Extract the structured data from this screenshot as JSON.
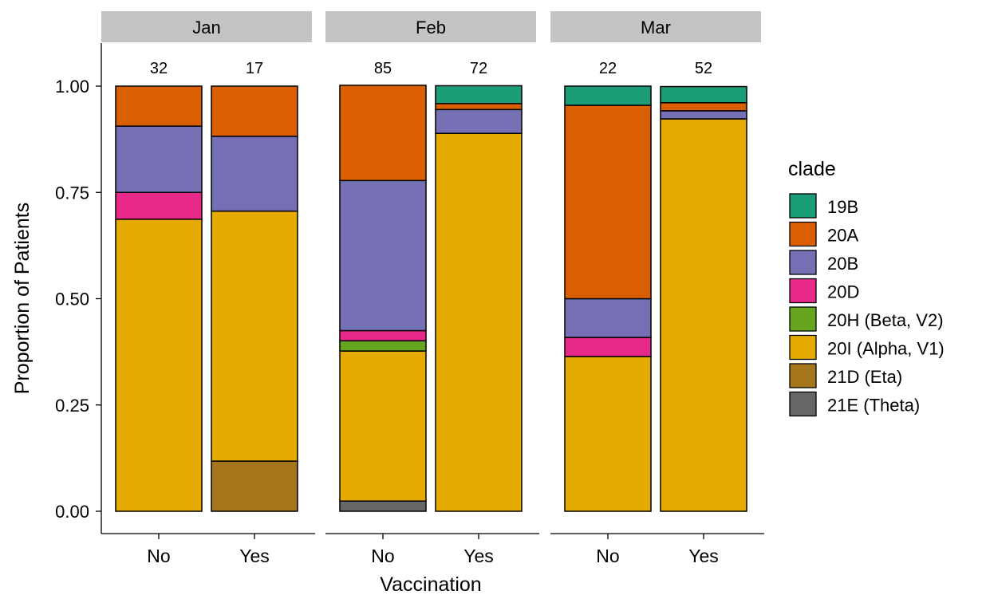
{
  "chart_data": {
    "type": "bar",
    "stacked": true,
    "faceted": true,
    "xlabel": "Vaccination",
    "ylabel": "Proportion of Patients",
    "ylim": [
      0,
      1
    ],
    "yticks": [
      "0.00",
      "0.25",
      "0.50",
      "0.75",
      "1.00"
    ],
    "categories": [
      "No",
      "Yes"
    ],
    "legend": {
      "title": "clade",
      "position": "right",
      "items": [
        {
          "label": "19B",
          "color": "#1b9e77"
        },
        {
          "label": "20A",
          "color": "#d95f02"
        },
        {
          "label": "20B",
          "color": "#7570b3"
        },
        {
          "label": "20D",
          "color": "#e7298a"
        },
        {
          "label": "20H (Beta, V2)",
          "color": "#66a61e"
        },
        {
          "label": "20I (Alpha, V1)",
          "color": "#e6ab02"
        },
        {
          "label": "21D (Eta)",
          "color": "#a6761d"
        },
        {
          "label": "21E (Theta)",
          "color": "#666666"
        }
      ]
    },
    "panels": [
      {
        "title": "Jan",
        "bars": [
          {
            "category": "No",
            "count": "32",
            "segments": {
              "19B": 0,
              "20A": 0.094,
              "20B": 0.156,
              "20D": 0.063,
              "20H (Beta, V2)": 0,
              "20I (Alpha, V1)": 0.687,
              "21D (Eta)": 0,
              "21E (Theta)": 0
            }
          },
          {
            "category": "Yes",
            "count": "17",
            "segments": {
              "19B": 0,
              "20A": 0.118,
              "20B": 0.176,
              "20D": 0,
              "20H (Beta, V2)": 0,
              "20I (Alpha, V1)": 0.588,
              "21D (Eta)": 0.118,
              "21E (Theta)": 0
            }
          }
        ]
      },
      {
        "title": "Feb",
        "bars": [
          {
            "category": "No",
            "count": "85",
            "segments": {
              "19B": 0,
              "20A": 0.224,
              "20B": 0.353,
              "20D": 0.024,
              "20H (Beta, V2)": 0.024,
              "20I (Alpha, V1)": 0.353,
              "21D (Eta)": 0,
              "21E (Theta)": 0.024
            }
          },
          {
            "category": "Yes",
            "count": "72",
            "segments": {
              "19B": 0.042,
              "20A": 0.014,
              "20B": 0.056,
              "20D": 0,
              "20H (Beta, V2)": 0,
              "20I (Alpha, V1)": 0.889,
              "21D (Eta)": 0,
              "21E (Theta)": 0
            }
          }
        ]
      },
      {
        "title": "Mar",
        "bars": [
          {
            "category": "No",
            "count": "22",
            "segments": {
              "19B": 0.045,
              "20A": 0.455,
              "20B": 0.091,
              "20D": 0.045,
              "20H (Beta, V2)": 0,
              "20I (Alpha, V1)": 0.364,
              "21D (Eta)": 0,
              "21E (Theta)": 0
            }
          },
          {
            "category": "Yes",
            "count": "52",
            "segments": {
              "19B": 0.038,
              "20A": 0.019,
              "20B": 0.019,
              "20D": 0,
              "20H (Beta, V2)": 0,
              "20I (Alpha, V1)": 0.923,
              "21D (Eta)": 0,
              "21E (Theta)": 0
            }
          }
        ]
      }
    ]
  }
}
